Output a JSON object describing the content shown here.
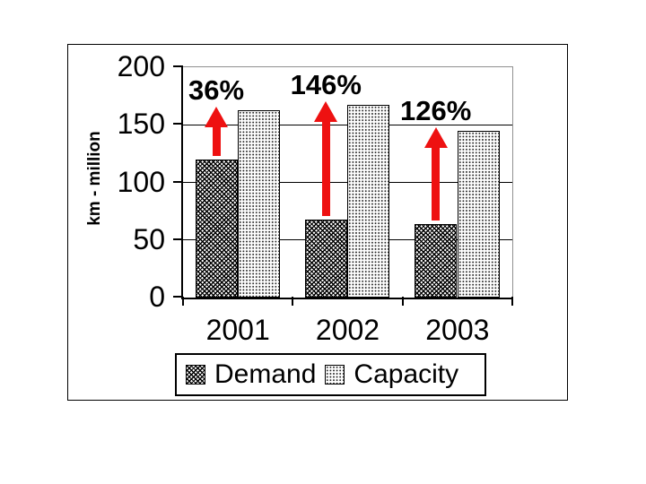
{
  "chart_data": {
    "type": "bar",
    "title": "",
    "categories": [
      "2001",
      "2002",
      "2003"
    ],
    "series": [
      {
        "name": "Demand",
        "values": [
          120,
          68,
          64
        ]
      },
      {
        "name": "Capacity",
        "values": [
          163,
          167,
          145
        ]
      }
    ],
    "annotations": [
      {
        "category": "2001",
        "label": "36%"
      },
      {
        "category": "2002",
        "label": "146%"
      },
      {
        "category": "2003",
        "label": "126%"
      }
    ],
    "xlabel": "",
    "ylabel": "km - million",
    "ylim": [
      0,
      200
    ],
    "yticks": [
      0,
      50,
      100,
      150,
      200
    ],
    "grid": true,
    "legend_position": "bottom"
  },
  "colors": {
    "arrow_red": "#ee1111",
    "gridline": "#000000",
    "plot_border": "#909090",
    "demand_pattern": "dark diagonal-check hatch",
    "capacity_pattern": "light dot grid"
  }
}
